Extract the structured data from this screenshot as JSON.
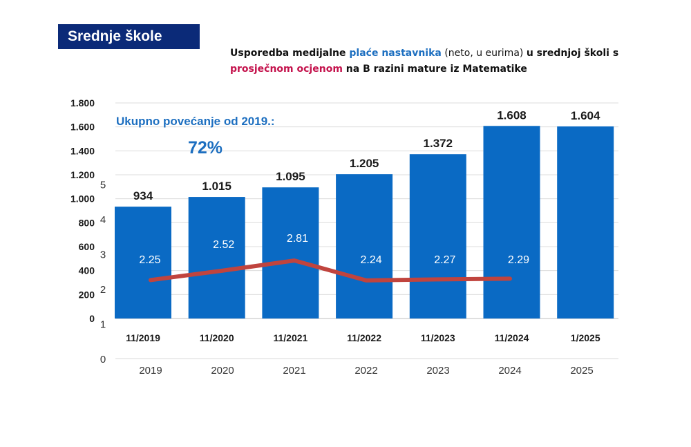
{
  "header": {
    "badge": "Srednje škole"
  },
  "title": {
    "part1": "Usporedba medijalne ",
    "part2": "plaće nastavnika",
    "part3": " (neto, u eurima) ",
    "part4": "u srednjoj školi s ",
    "part5": "prosječnom ocjenom",
    "part6": " na B razini mature iz Matematike"
  },
  "colors": {
    "bar": "#0a6ac4",
    "line": "#c0443e",
    "badge": "#0b2a78",
    "blue_text": "#1d6fc0",
    "pink_text": "#c4124c"
  },
  "chart_data": {
    "type": "bar",
    "categories": [
      "11/2019",
      "11/2020",
      "11/2021",
      "11/2022",
      "11/2023",
      "11/2024",
      "1/2025"
    ],
    "series": [
      {
        "name": "Medijalna plaća nastavnika (neto, EUR)",
        "type": "bar",
        "values": [
          934,
          1015,
          1095,
          1205,
          1372,
          1608,
          1604
        ],
        "labels": [
          "934",
          "1.015",
          "1.095",
          "1.205",
          "1.372",
          "1.608",
          "1.604"
        ]
      },
      {
        "name": "Prosječna ocjena na B razini mature iz Matematike",
        "type": "line",
        "x": [
          "2019",
          "2020",
          "2021",
          "2022",
          "2023",
          "2024"
        ],
        "values": [
          2.25,
          2.52,
          2.81,
          2.24,
          2.27,
          2.29
        ],
        "labels": [
          "2.25",
          "2.52",
          "2.81",
          "2.24",
          "2.27",
          "2.29"
        ]
      }
    ],
    "y_left": {
      "ylim": [
        0,
        1800
      ],
      "ticks": [
        0,
        200,
        400,
        600,
        800,
        1000,
        1200,
        1400,
        1600,
        1800
      ],
      "tick_labels": [
        "0",
        "200",
        "400",
        "600",
        "800",
        "1.000",
        "1.200",
        "1.400",
        "1.600",
        "1.800"
      ]
    },
    "y_right": {
      "ylim": [
        0,
        5
      ],
      "ticks": [
        0,
        1,
        2,
        3,
        4,
        5
      ],
      "tick_labels": [
        "0",
        "1",
        "2",
        "3",
        "4",
        "5"
      ]
    },
    "x_secondary": {
      "tick_labels": [
        "2019",
        "2020",
        "2021",
        "2022",
        "2023",
        "2024",
        "2025"
      ]
    },
    "annotation": {
      "text": "Ukupno povećanje od 2019.:",
      "value": "72%"
    },
    "gridlines": true
  }
}
